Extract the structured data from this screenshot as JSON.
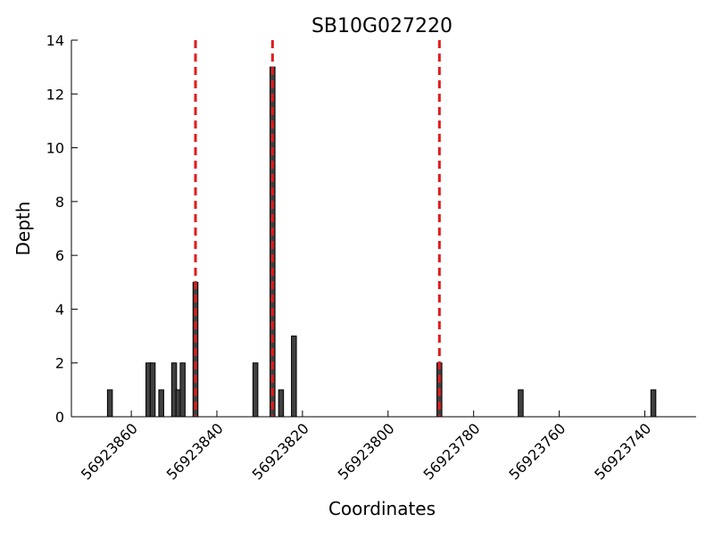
{
  "chart_data": {
    "type": "bar",
    "title": "SB10G027220",
    "xlabel": "Coordinates",
    "ylabel": "Depth",
    "xlim": [
      56923874,
      56923728
    ],
    "ylim": [
      0,
      14
    ],
    "x_reversed": true,
    "grid": false,
    "x_ticks": [
      56923860,
      56923840,
      56923820,
      56923800,
      56923780,
      56923760,
      56923740
    ],
    "y_ticks": [
      0,
      2,
      4,
      6,
      8,
      10,
      12,
      14
    ],
    "x_tick_labels": [
      "56923860",
      "56923840",
      "56923820",
      "56923800",
      "56923780",
      "56923760",
      "56923740"
    ],
    "y_tick_labels": [
      "0",
      "2",
      "4",
      "6",
      "8",
      "10",
      "12",
      "14"
    ],
    "bars": [
      {
        "x": 56923865,
        "depth": 1
      },
      {
        "x": 56923856,
        "depth": 2
      },
      {
        "x": 56923855,
        "depth": 2
      },
      {
        "x": 56923853,
        "depth": 1
      },
      {
        "x": 56923850,
        "depth": 2
      },
      {
        "x": 56923849,
        "depth": 1
      },
      {
        "x": 56923848,
        "depth": 2
      },
      {
        "x": 56923845,
        "depth": 5
      },
      {
        "x": 56923831,
        "depth": 2
      },
      {
        "x": 56923827,
        "depth": 13
      },
      {
        "x": 56923825,
        "depth": 1
      },
      {
        "x": 56923822,
        "depth": 3
      },
      {
        "x": 56923788,
        "depth": 2
      },
      {
        "x": 56923769,
        "depth": 1
      },
      {
        "x": 56923738,
        "depth": 1
      }
    ],
    "vlines": [
      56923845,
      56923827,
      56923788
    ],
    "bar_color": "#404040",
    "vline_color": "#e41a1c"
  }
}
